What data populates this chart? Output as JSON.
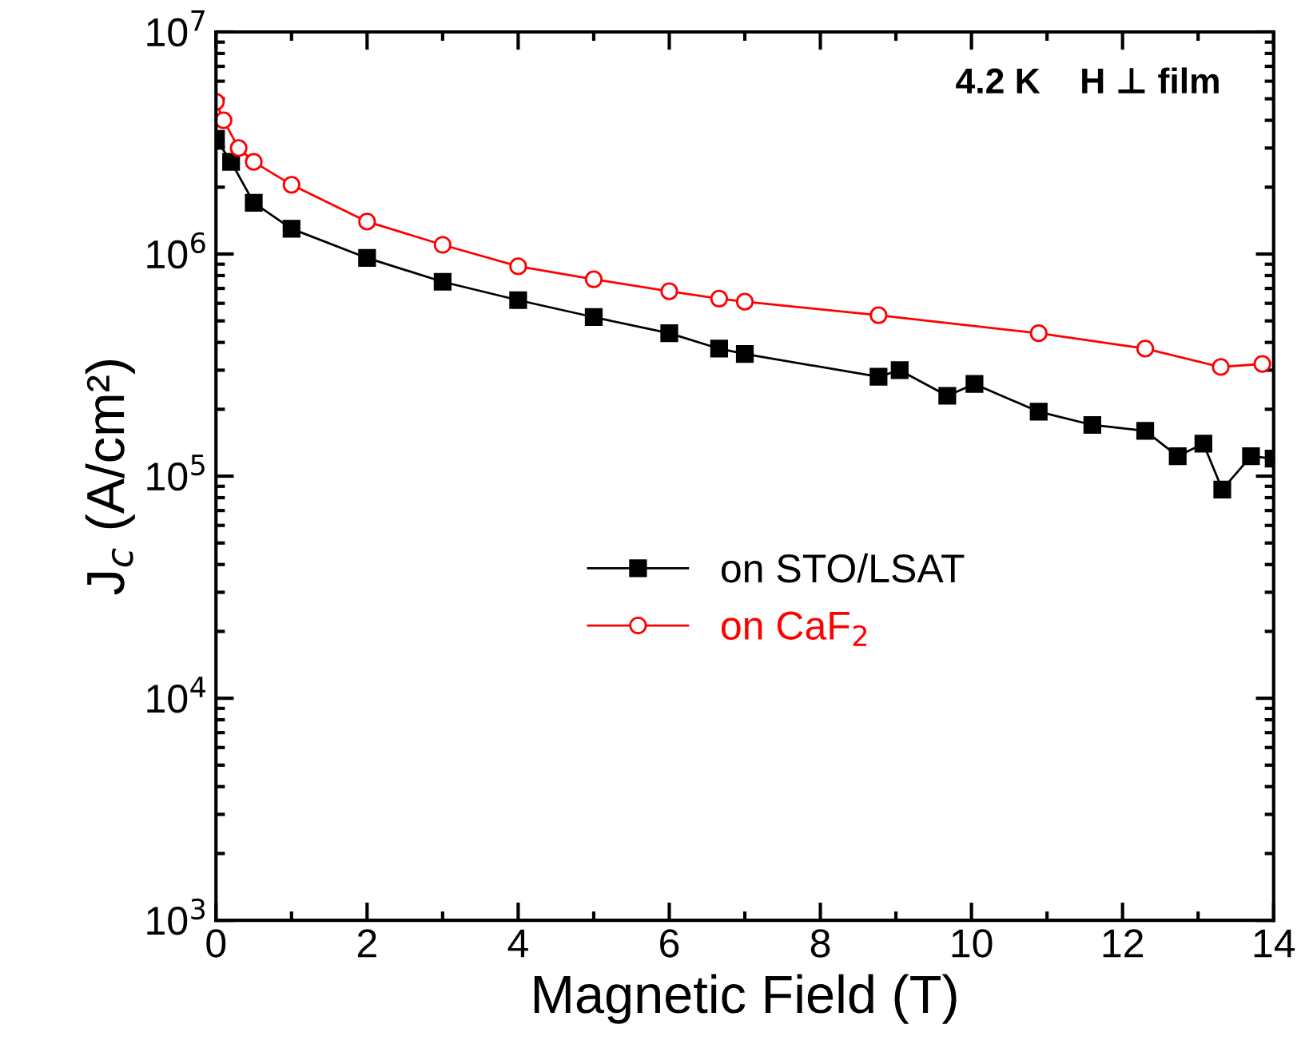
{
  "chart_data": {
    "type": "line",
    "xlabel": "Magnetic Field (T)",
    "ylabel": "J$_{c}$ (A/cm²)",
    "log": "y",
    "xlim": [
      0,
      14
    ],
    "ylim": [
      1000,
      10000000
    ],
    "xticks": [
      0,
      2,
      4,
      6,
      8,
      10,
      12,
      14
    ],
    "yticks": [
      {
        "value": 1000,
        "label": "10$^{3}$"
      },
      {
        "value": 10000,
        "label": "10$^{4}$"
      },
      {
        "value": 100000,
        "label": "10$^{5}$"
      },
      {
        "value": 1000000,
        "label": "10$^{6}$"
      },
      {
        "value": 10000000,
        "label": "10$^{7}$"
      }
    ],
    "grid": false,
    "legend": "center",
    "annotations": [
      "4.2 K    H ⊥ film"
    ],
    "series": [
      {
        "name": "on STO/LSAT",
        "color": "#000000",
        "marker": "square",
        "x": [
          0,
          0.2,
          0.5,
          1,
          2,
          3,
          4,
          5,
          6,
          6.66,
          7,
          8.77,
          9.05,
          9.68,
          10.04,
          10.89,
          11.6,
          12.3,
          12.73,
          13.07,
          13.32,
          13.7,
          14
        ],
        "values": [
          3300000,
          2600000,
          1700000,
          1300000,
          960000,
          750000,
          620000,
          520000,
          440000,
          375000,
          355000,
          280000,
          300000,
          230000,
          260000,
          195000,
          170000,
          160000,
          123000,
          140000,
          87000,
          123000,
          120000
        ]
      },
      {
        "name": "on CaF$_{2}$",
        "color": "#ff0000",
        "marker": "circle",
        "x": [
          0,
          0.1,
          0.3,
          0.5,
          1,
          2,
          3,
          4,
          5,
          6,
          6.66,
          7,
          8.77,
          10.89,
          12.3,
          13.3,
          13.85
        ],
        "values": [
          4850000,
          4000000,
          3000000,
          2600000,
          2050000,
          1400000,
          1100000,
          880000,
          770000,
          680000,
          630000,
          610000,
          530000,
          440000,
          375000,
          310000,
          320000
        ]
      }
    ]
  }
}
